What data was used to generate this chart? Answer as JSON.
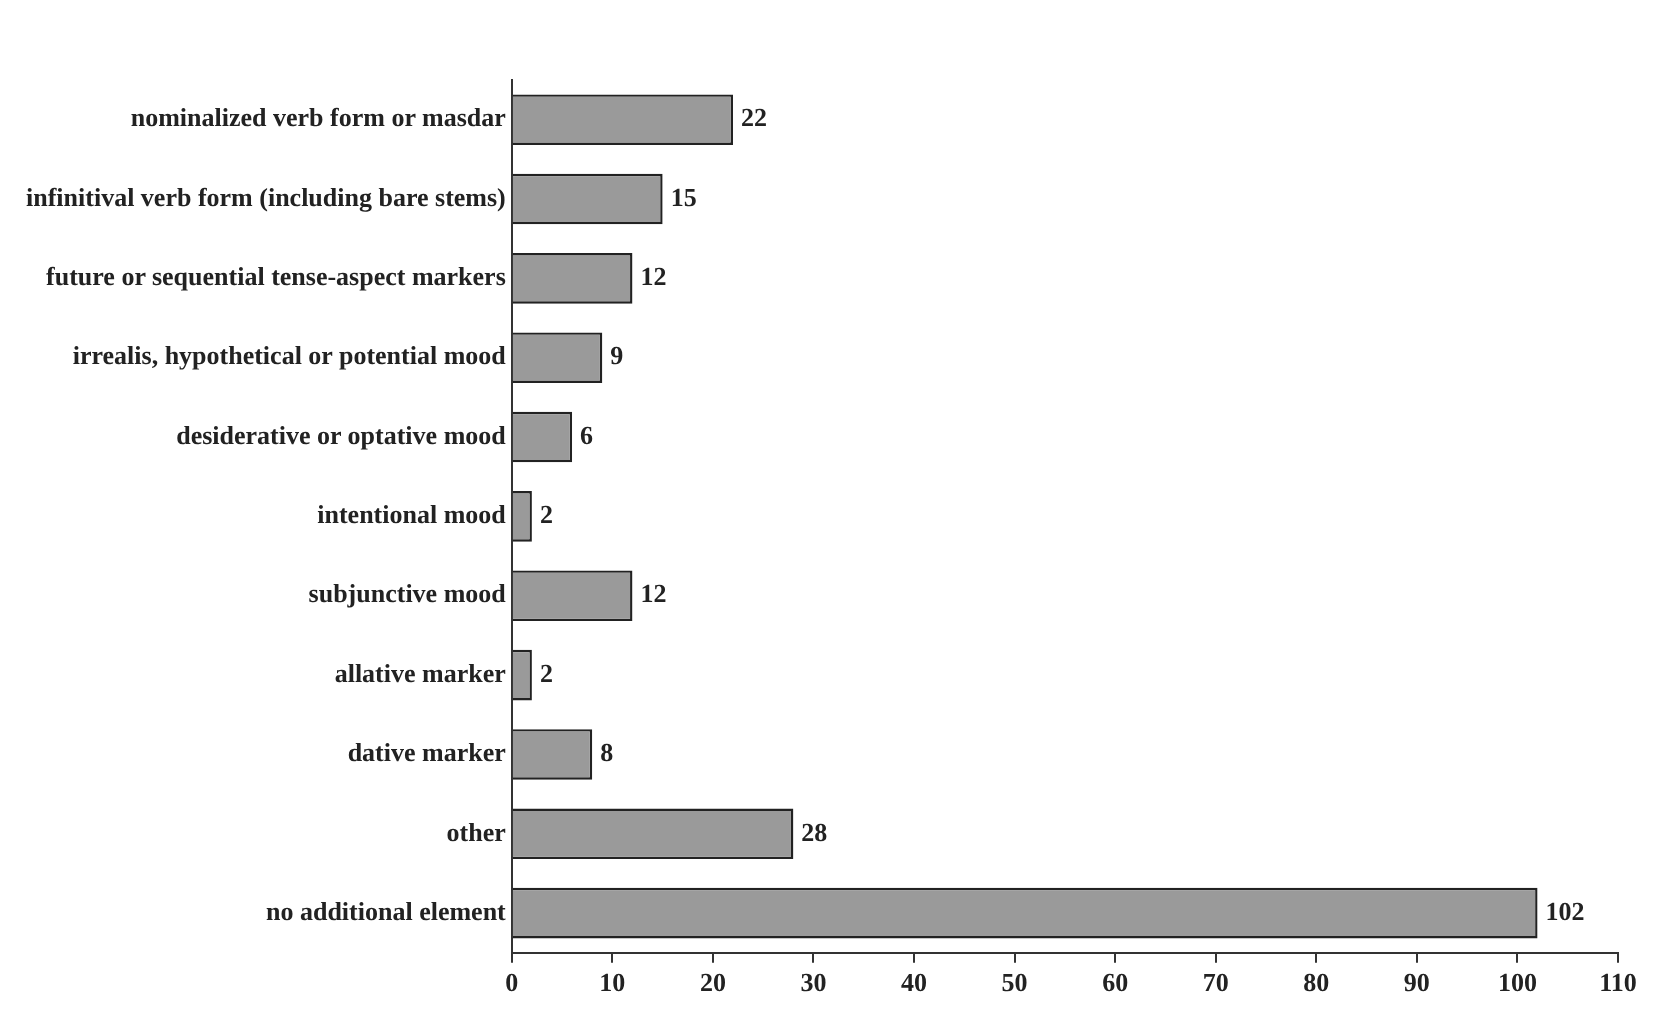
{
  "chart_data": {
    "type": "bar",
    "orientation": "horizontal",
    "categories": [
      "nominalized verb form or masdar",
      "infinitival verb form (including bare stems)",
      "future or sequential tense-aspect markers",
      "irrealis, hypothetical or potential mood",
      "desiderative or optative mood",
      "intentional mood",
      "subjunctive mood",
      "allative marker",
      "dative marker",
      "other",
      "no additional element"
    ],
    "values": [
      22,
      15,
      12,
      9,
      6,
      2,
      12,
      2,
      8,
      28,
      102
    ],
    "color": "#9a9a9a",
    "xlim": [
      0,
      110
    ],
    "xticks": [
      0,
      10,
      20,
      30,
      40,
      50,
      60,
      70,
      80,
      90,
      100,
      110
    ],
    "data_labels": true,
    "grid": false,
    "legend": false
  }
}
